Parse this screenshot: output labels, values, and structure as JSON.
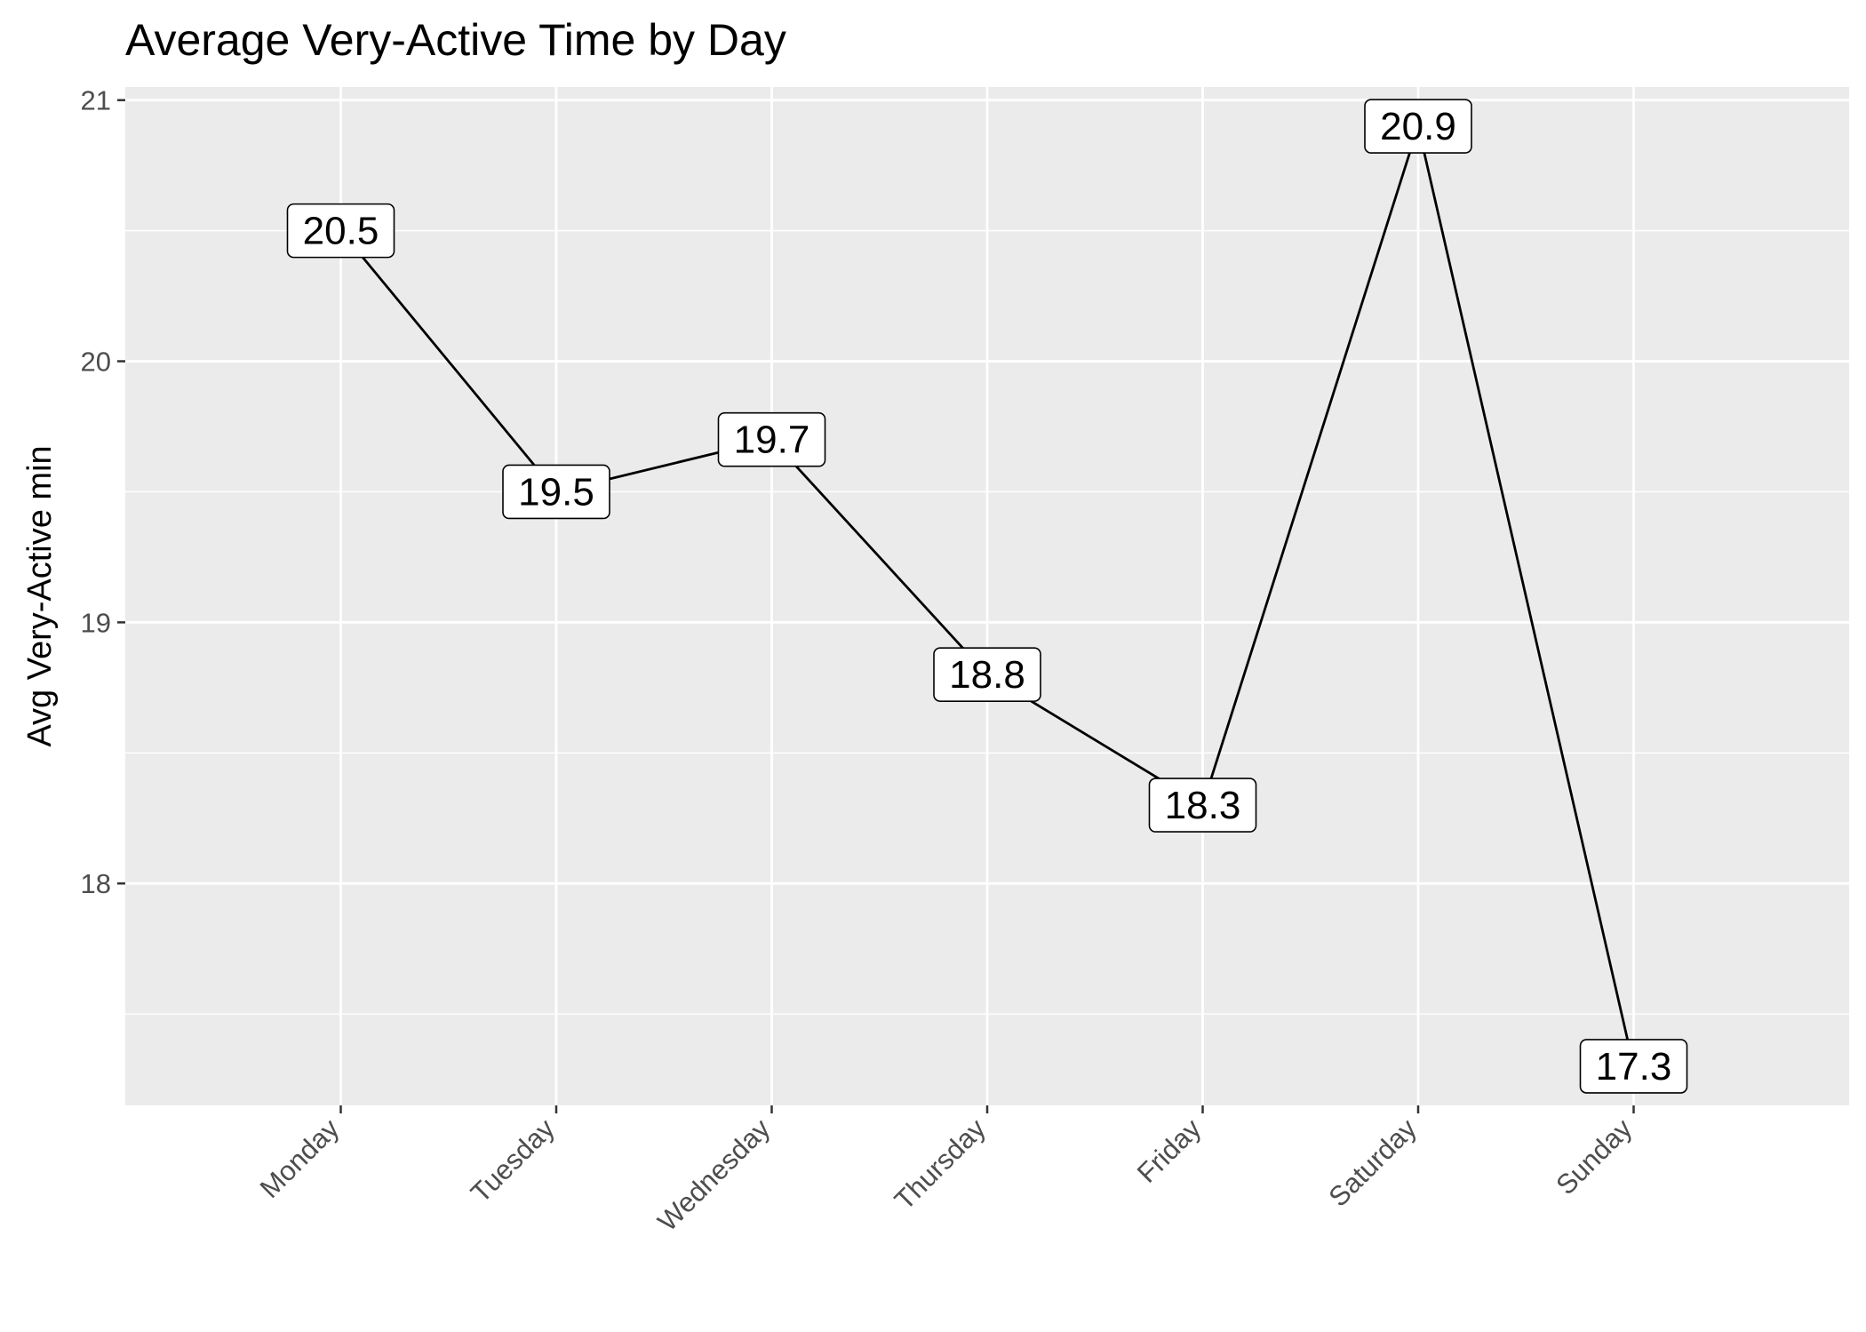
{
  "chart_data": {
    "type": "line",
    "title": "Average Very-Active Time by Day",
    "xlabel": "",
    "ylabel": "Avg Very-Active min",
    "categories": [
      "Monday",
      "Tuesday",
      "Wednesday",
      "Thursday",
      "Friday",
      "Saturday",
      "Sunday"
    ],
    "values": [
      20.5,
      19.5,
      19.7,
      18.8,
      18.3,
      20.9,
      17.3
    ],
    "data_labels": [
      "20.5",
      "19.5",
      "19.7",
      "18.8",
      "18.3",
      "20.9",
      "17.3"
    ],
    "y_ticks": [
      18,
      19,
      20,
      21
    ],
    "y_tick_labels": [
      "18",
      "19",
      "20",
      "21"
    ],
    "ylim": [
      17.15,
      21.05
    ],
    "grid": true,
    "legend": "none",
    "colors": {
      "panel": "#ebebeb",
      "grid": "#ffffff",
      "line": "#000000",
      "tick_text": "#4d4d4d",
      "label_fill": "#ffffff"
    }
  }
}
